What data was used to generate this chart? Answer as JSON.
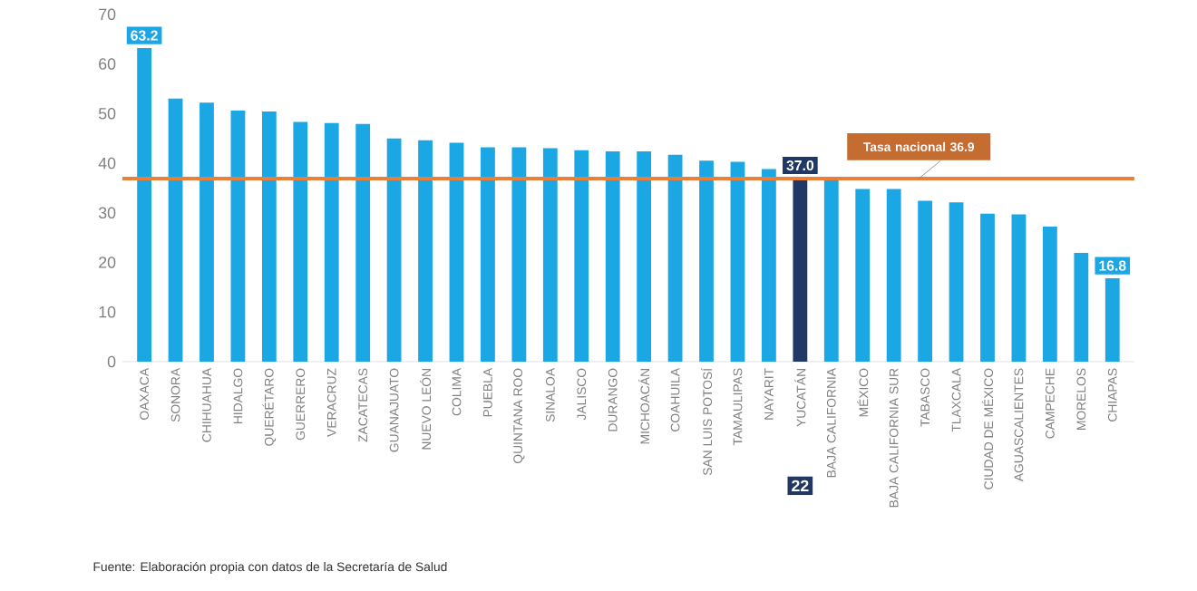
{
  "chart_data": {
    "type": "bar",
    "categories": [
      "OAXACA",
      "SONORA",
      "CHIHUAHUA",
      "HIDALGO",
      "QUERÉTARO",
      "GUERRERO",
      "VERACRUZ",
      "ZACATECAS",
      "GUANAJUATO",
      "NUEVO LEÓN",
      "COLIMA",
      "PUEBLA",
      "QUINTANA ROO",
      "SINALOA",
      "JALISCO",
      "DURANGO",
      "MICHOACÁN",
      "COAHUILA",
      "SAN LUIS POTOSÍ",
      "TAMAULIPAS",
      "NAYARIT",
      "YUCATÁN",
      "BAJA CALIFORNIA",
      "MÉXICO",
      "BAJA CALIFORNIA SUR",
      "TABASCO",
      "TLAXCALA",
      "CIUDAD DE MÉXICO",
      "AGUASCALIENTES",
      "CAMPECHE",
      "MORELOS",
      "CHIAPAS"
    ],
    "values": [
      63.2,
      53.0,
      52.2,
      50.6,
      50.4,
      48.3,
      48.1,
      47.9,
      45.0,
      44.6,
      44.1,
      43.2,
      43.2,
      43.0,
      42.6,
      42.4,
      42.4,
      41.7,
      40.5,
      40.3,
      38.8,
      37.0,
      36.6,
      34.8,
      34.8,
      32.4,
      32.1,
      29.8,
      29.7,
      27.2,
      21.9,
      16.8
    ],
    "colors": [
      "#1ba6e4",
      "#1ba6e4",
      "#1ba6e4",
      "#1ba6e4",
      "#1ba6e4",
      "#1ba6e4",
      "#1ba6e4",
      "#1ba6e4",
      "#1ba6e4",
      "#1ba6e4",
      "#1ba6e4",
      "#1ba6e4",
      "#1ba6e4",
      "#1ba6e4",
      "#1ba6e4",
      "#1ba6e4",
      "#1ba6e4",
      "#1ba6e4",
      "#1ba6e4",
      "#1ba6e4",
      "#1ba6e4",
      "#1f3864",
      "#1ba6e4",
      "#1ba6e4",
      "#1ba6e4",
      "#1ba6e4",
      "#1ba6e4",
      "#1ba6e4",
      "#1ba6e4",
      "#1ba6e4",
      "#1ba6e4",
      "#1ba6e4"
    ],
    "value_labels": [
      "63.2",
      null,
      null,
      null,
      null,
      null,
      null,
      null,
      null,
      null,
      null,
      null,
      null,
      null,
      null,
      null,
      null,
      null,
      null,
      null,
      null,
      "37.0",
      null,
      null,
      null,
      null,
      null,
      null,
      null,
      null,
      null,
      "16.8"
    ],
    "ylim": [
      0,
      70
    ],
    "yticks": [
      0,
      10,
      20,
      30,
      40,
      50,
      60,
      70
    ],
    "ref_lines": [
      {
        "axis": "y",
        "value": 36.9,
        "label": "Tasa nacional 36.9",
        "color": "#e8803a"
      }
    ],
    "annotations": [
      "22",
      "Fuente: Elaboración propia con datos de la Secretaría de Salud"
    ],
    "grid": false
  }
}
